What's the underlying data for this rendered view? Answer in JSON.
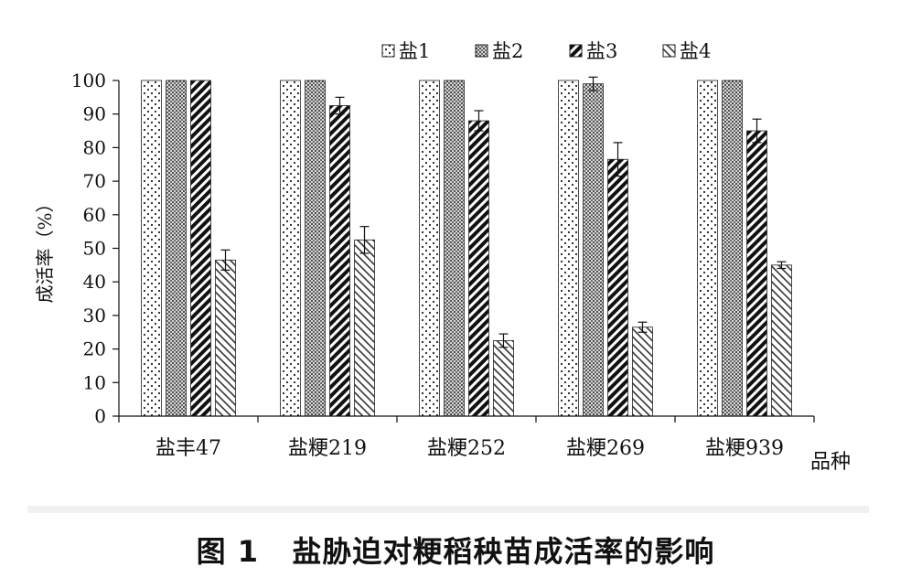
{
  "chart_data": {
    "type": "bar",
    "title": "",
    "xlabel": "品种",
    "ylabel": "成活率（%）",
    "ylim": [
      0,
      100
    ],
    "yticks": [
      0,
      10,
      20,
      30,
      40,
      50,
      60,
      70,
      80,
      90,
      100
    ],
    "categories": [
      "盐丰47",
      "盐粳219",
      "盐粳252",
      "盐粳269",
      "盐粳939"
    ],
    "legend_position": "top-right",
    "grid": false,
    "series": [
      {
        "name": "盐1",
        "pattern": "dots",
        "values": [
          100,
          100,
          100,
          100,
          100
        ],
        "errors": [
          0,
          0,
          0,
          0,
          0
        ]
      },
      {
        "name": "盐2",
        "pattern": "dense-dots",
        "values": [
          100,
          100,
          100,
          99,
          100
        ],
        "errors": [
          0,
          0,
          0,
          2,
          0
        ]
      },
      {
        "name": "盐3",
        "pattern": "heavy-diagonal",
        "values": [
          100,
          92.5,
          88,
          76.5,
          85
        ],
        "errors": [
          0,
          2.5,
          3,
          5,
          3.5
        ]
      },
      {
        "name": "盐4",
        "pattern": "light-diagonal",
        "values": [
          46.5,
          52.5,
          22.5,
          26.5,
          45
        ],
        "errors": [
          3,
          4,
          2,
          1.5,
          1
        ]
      }
    ]
  },
  "caption": {
    "figure_label": "图 1",
    "text": "盐胁迫对粳稻秧苗成活率的影响"
  }
}
